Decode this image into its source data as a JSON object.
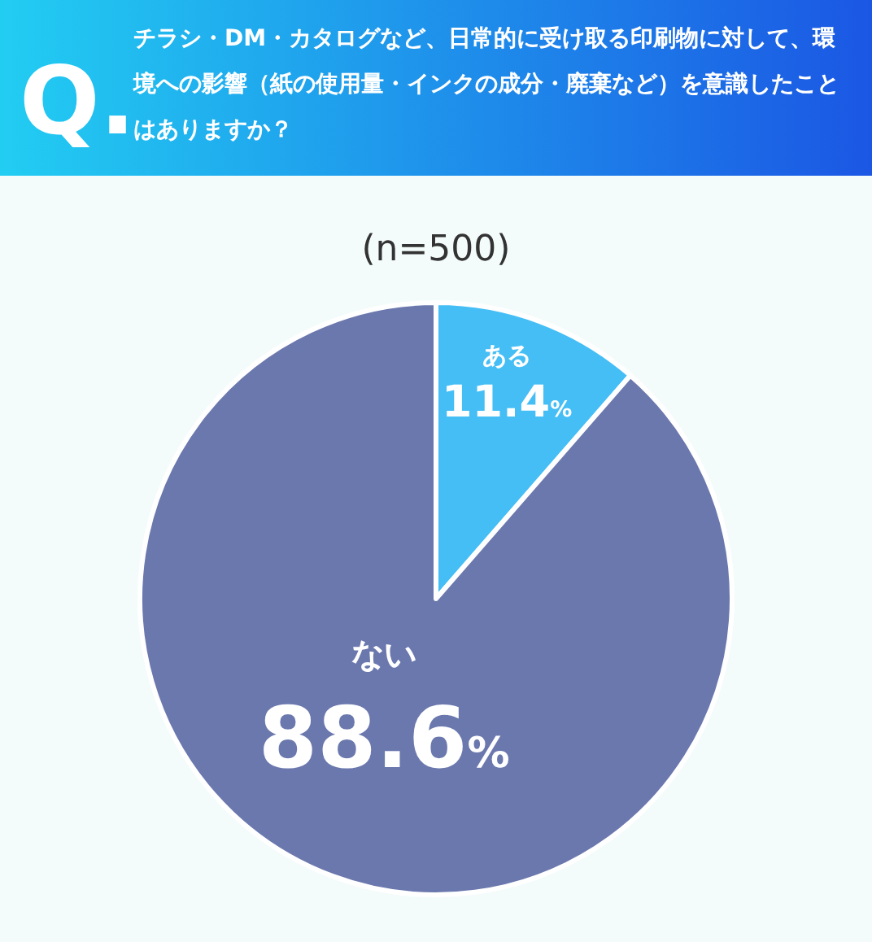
{
  "chart_data": {
    "type": "pie",
    "title": "チラシ・DM・カタログなど、日常的に受け取る印刷物に対して、環境への影響（紙の使用量・インクの成分・廃棄など）を意識したことはありますか？",
    "subtitle": "(n=500)",
    "annotations": [
      "Q."
    ],
    "categories": [
      "ある",
      "ない"
    ],
    "values": [
      11.4,
      88.6
    ],
    "colors": [
      "#45bef6",
      "#6b78ae"
    ],
    "value_labels": [
      "11.4%",
      "88.6%"
    ]
  }
}
